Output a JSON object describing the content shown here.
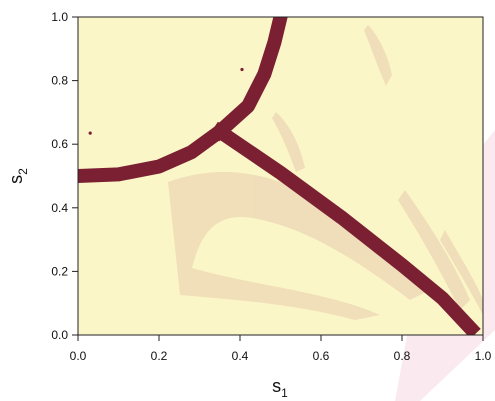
{
  "chart_data": {
    "type": "heatmap",
    "title": "",
    "xlabel": "s",
    "xlabel_subscript": "1",
    "ylabel": "s",
    "ylabel_subscript": "2",
    "xlim": [
      0.0,
      1.0
    ],
    "ylim": [
      0.0,
      1.0
    ],
    "x_ticks": [
      "0.0",
      "0.2",
      "0.4",
      "0.6",
      "0.8",
      "1.0"
    ],
    "y_ticks": [
      "0.0",
      "0.2",
      "0.4",
      "0.6",
      "0.8",
      "1.0"
    ],
    "grid": false,
    "legend": "none",
    "colors": {
      "background_region": "#fbf6c8",
      "faint_region": "#ecd7b4",
      "boundary": "#7b1f33",
      "watermark": "#f6d9e3"
    },
    "boundary_curves": [
      {
        "name": "left-arc",
        "points": [
          [
            0.0,
            0.5
          ],
          [
            0.1,
            0.505
          ],
          [
            0.2,
            0.53
          ],
          [
            0.28,
            0.575
          ],
          [
            0.35,
            0.64
          ]
        ]
      },
      {
        "name": "upper-arc",
        "points": [
          [
            0.35,
            0.64
          ],
          [
            0.42,
            0.72
          ],
          [
            0.46,
            0.82
          ],
          [
            0.485,
            0.92
          ],
          [
            0.5,
            1.0
          ]
        ]
      },
      {
        "name": "diagonal",
        "points": [
          [
            0.35,
            0.64
          ],
          [
            0.5,
            0.51
          ],
          [
            0.65,
            0.37
          ],
          [
            0.8,
            0.22
          ],
          [
            0.9,
            0.115
          ],
          [
            0.97,
            0.02
          ]
        ]
      }
    ],
    "isolated_points": [
      [
        0.03,
        0.635
      ],
      [
        0.405,
        0.835
      ]
    ]
  }
}
